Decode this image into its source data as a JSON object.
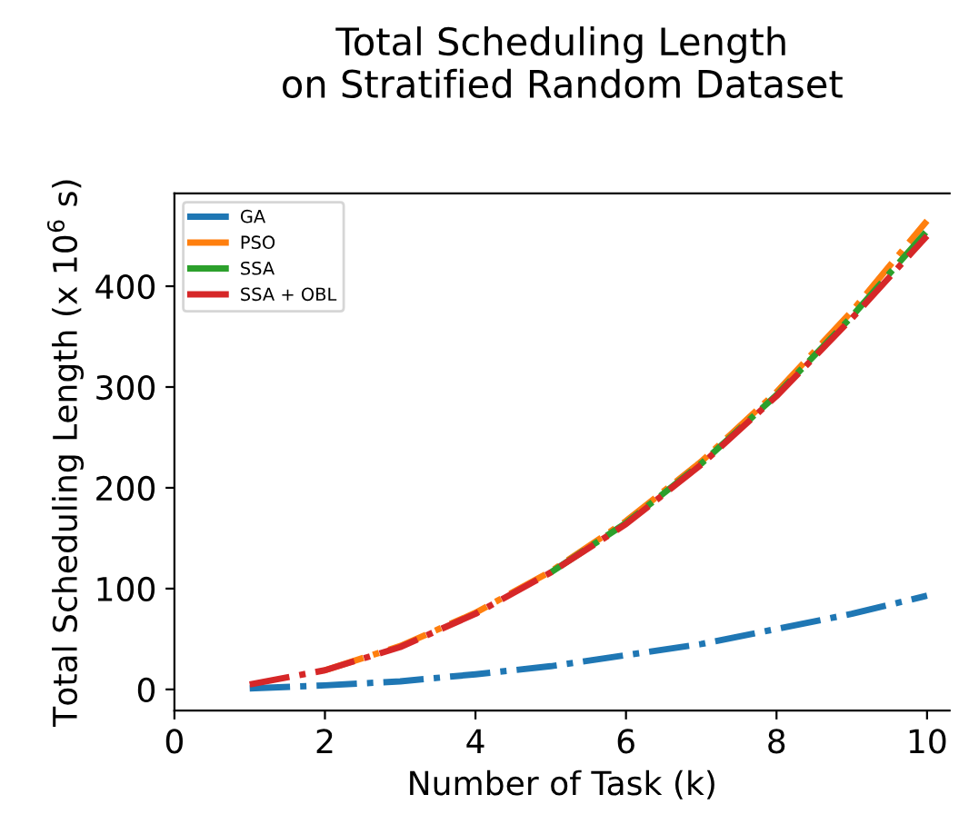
{
  "chart_data": {
    "type": "line",
    "title": "Total Scheduling Length\non Stratified Random Dataset",
    "xlabel": "Number of Task (k)",
    "ylabel": "Total Scheduling Length (x 10$^{6}$ s)",
    "x": [
      1,
      2,
      3,
      4,
      5,
      6,
      7,
      8,
      9,
      10
    ],
    "series": [
      {
        "name": "GA",
        "color": "#1f77b4",
        "values": [
          1,
          4,
          8,
          15,
          23,
          34,
          45,
          60,
          75,
          93
        ]
      },
      {
        "name": "PSO",
        "color": "#ff7f0e",
        "values": [
          null,
          19,
          43,
          76,
          117,
          167,
          226,
          295,
          375,
          465
        ]
      },
      {
        "name": "SSA",
        "color": "#2ca02c",
        "values": [
          null,
          null,
          null,
          null,
          116,
          165,
          224,
          292,
          370,
          455
        ]
      },
      {
        "name": "SSA + OBL",
        "color": "#d62728",
        "values": [
          5,
          19,
          42,
          75,
          116,
          164,
          223,
          291,
          368,
          450
        ]
      }
    ],
    "xlim": [
      0,
      10.3
    ],
    "ylim": [
      -21,
      492
    ],
    "xticks": [
      0,
      2,
      4,
      6,
      8,
      10
    ],
    "yticks": [
      0,
      100,
      200,
      300,
      400
    ],
    "legend": "top left",
    "grid": false,
    "line_style": "dashdot",
    "marker": "none"
  }
}
